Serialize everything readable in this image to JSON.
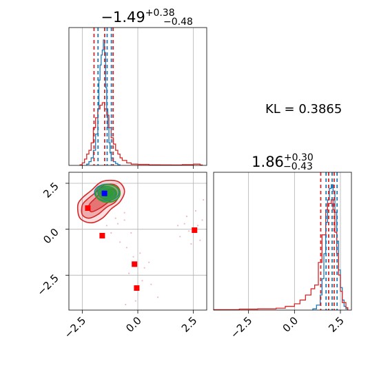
{
  "kl_label": "KL = 0.3865",
  "chart_data": [
    {
      "type": "histogram",
      "panel": "top-left",
      "title": {
        "main": "−1.49",
        "sup": "+0.38",
        "sub": "−0.48"
      },
      "xlim": [
        -3.1,
        3.1
      ],
      "grid": true,
      "vlines_red": [
        -1.97,
        -1.49,
        -1.11
      ],
      "vlines_blue": [
        -1.79,
        -1.38,
        -1.19
      ],
      "series": [
        {
          "color": "#1f77b4",
          "x": [
            -2.3,
            -2.2,
            -2.1,
            -2.0,
            -1.9,
            -1.8,
            -1.75,
            -1.7,
            -1.65,
            -1.6,
            -1.55,
            -1.5,
            -1.45,
            -1.4,
            -1.35,
            -1.3,
            -1.25,
            -1.2,
            -1.1,
            -1.0,
            -0.9
          ],
          "y": [
            0.01,
            0.03,
            0.06,
            0.12,
            0.25,
            0.45,
            0.68,
            0.8,
            0.88,
            0.92,
            1.0,
            0.9,
            0.62,
            0.45,
            0.3,
            0.18,
            0.1,
            0.06,
            0.03,
            0.015,
            0.005
          ]
        },
        {
          "color": "#d62728",
          "x": [
            -2.6,
            -2.5,
            -2.4,
            -2.3,
            -2.2,
            -2.1,
            -2.0,
            -1.9,
            -1.8,
            -1.7,
            -1.6,
            -1.5,
            -1.4,
            -1.3,
            -1.2,
            -1.1,
            -1.0,
            -0.9,
            -0.8,
            -0.7,
            -0.5,
            -0.3,
            0.0,
            0.5,
            1.0,
            1.5,
            2.0,
            2.5,
            2.8
          ],
          "y": [
            0.005,
            0.02,
            0.05,
            0.09,
            0.12,
            0.18,
            0.3,
            0.38,
            0.45,
            0.48,
            0.5,
            0.45,
            0.4,
            0.3,
            0.22,
            0.17,
            0.12,
            0.09,
            0.06,
            0.04,
            0.02,
            0.01,
            0.008,
            0.005,
            0.004,
            0.003,
            0.006,
            0.01,
            0.003
          ]
        }
      ]
    },
    {
      "type": "scatter",
      "panel": "bottom-left",
      "xlim": [
        -3.1,
        3.1
      ],
      "ylim": [
        -4.4,
        3.1
      ],
      "xticks": [
        "−2.5",
        "0.0",
        "2.5"
      ],
      "xtick_values": [
        -2.5,
        0.0,
        2.5
      ],
      "yticks": [
        "2.5",
        "0.0",
        "−2.5"
      ],
      "ytick_values": [
        2.5,
        0.0,
        -2.5
      ],
      "grid": true,
      "red_squares": [
        [
          -2.25,
          1.15
        ],
        [
          -1.6,
          -0.35
        ],
        [
          -0.15,
          -1.9
        ],
        [
          -0.05,
          -3.2
        ],
        [
          2.55,
          -0.05
        ]
      ],
      "blue_square": [
        -1.5,
        1.95
      ],
      "blue_contours": [
        {
          "cx": -1.4,
          "cy": 2.0,
          "rx": 0.55,
          "ry": 0.45
        },
        {
          "cx": -1.4,
          "cy": 2.0,
          "rx": 0.4,
          "ry": 0.33
        },
        {
          "cx": -1.4,
          "cy": 2.0,
          "rx": 0.25,
          "ry": 0.2
        }
      ],
      "green_contours": [
        {
          "cx": -1.35,
          "cy": 1.95,
          "rx": 0.55,
          "ry": 0.48
        },
        {
          "cx": -1.35,
          "cy": 1.95,
          "rx": 0.4,
          "ry": 0.35
        },
        {
          "cx": -1.35,
          "cy": 1.95,
          "rx": 0.24,
          "ry": 0.2
        }
      ],
      "red_contours": [
        [
          [
            -2.7,
            1.3
          ],
          [
            -2.5,
            1.7
          ],
          [
            -2.1,
            2.1
          ],
          [
            -1.6,
            2.6
          ],
          [
            -0.9,
            2.6
          ],
          [
            -0.6,
            2.1
          ],
          [
            -0.8,
            1.5
          ],
          [
            -1.2,
            1.1
          ],
          [
            -1.6,
            0.6
          ],
          [
            -2.1,
            0.35
          ],
          [
            -2.6,
            0.6
          ]
        ],
        [
          [
            -2.5,
            1.3
          ],
          [
            -2.3,
            1.6
          ],
          [
            -1.9,
            2.0
          ],
          [
            -1.5,
            2.4
          ],
          [
            -1.0,
            2.4
          ],
          [
            -0.8,
            2.0
          ],
          [
            -1.0,
            1.5
          ],
          [
            -1.4,
            1.2
          ],
          [
            -1.8,
            0.8
          ],
          [
            -2.2,
            0.6
          ],
          [
            -2.5,
            0.8
          ]
        ],
        [
          [
            -2.2,
            1.3
          ],
          [
            -1.9,
            1.7
          ],
          [
            -1.5,
            2.15
          ],
          [
            -1.1,
            2.15
          ],
          [
            -1.0,
            1.8
          ],
          [
            -1.3,
            1.5
          ],
          [
            -1.7,
            1.15
          ],
          [
            -2.1,
            0.95
          ]
        ]
      ],
      "faint_points": [
        [
          -1.0,
          0.6
        ],
        [
          -0.9,
          0.3
        ],
        [
          -0.6,
          0.5
        ],
        [
          -0.3,
          -0.2
        ],
        [
          -0.5,
          -1.0
        ],
        [
          -0.2,
          -1.5
        ],
        [
          0.1,
          -1.3
        ],
        [
          0.3,
          -2.1
        ],
        [
          0.2,
          -2.8
        ],
        [
          0.6,
          -3.0
        ],
        [
          -0.1,
          -3.9
        ],
        [
          -0.55,
          -4.1
        ],
        [
          1.8,
          0.2
        ],
        [
          2.1,
          0.3
        ],
        [
          2.3,
          -0.1
        ],
        [
          2.7,
          0.2
        ],
        [
          2.9,
          0.5
        ],
        [
          2.6,
          1.0
        ],
        [
          2.8,
          -0.6
        ],
        [
          2.4,
          -0.8
        ],
        [
          1.9,
          -0.4
        ],
        [
          -1.2,
          -0.2
        ],
        [
          -0.8,
          -0.7
        ],
        [
          0.5,
          -1.8
        ],
        [
          -0.4,
          -2.4
        ],
        [
          -0.6,
          0.9
        ],
        [
          2.2,
          0.7
        ],
        [
          0.9,
          -3.7
        ],
        [
          -1.4,
          0.2
        ],
        [
          2.95,
          1.6
        ]
      ]
    },
    {
      "type": "histogram",
      "panel": "bottom-right",
      "title": {
        "main": "1.86",
        "sup": "+0.30",
        "sub": "−0.43"
      },
      "xlim": [
        -4.4,
        3.1
      ],
      "xticks": [
        "−2.5",
        "0.0",
        "2.5"
      ],
      "xtick_values": [
        -2.5,
        0.0,
        2.5
      ],
      "grid": true,
      "vlines_red": [
        1.43,
        1.86,
        2.16
      ],
      "vlines_blue": [
        1.72,
        2.05,
        2.32
      ],
      "series": [
        {
          "color": "#1f77b4",
          "x": [
            1.0,
            1.2,
            1.4,
            1.5,
            1.6,
            1.7,
            1.8,
            1.9,
            2.0,
            2.1,
            2.2,
            2.3,
            2.4,
            2.5,
            2.6,
            2.7,
            2.8
          ],
          "y": [
            0.01,
            0.04,
            0.12,
            0.25,
            0.45,
            0.7,
            0.88,
            0.97,
            1.0,
            0.95,
            0.78,
            0.55,
            0.32,
            0.18,
            0.08,
            0.03,
            0.01
          ]
        },
        {
          "color": "#d62728",
          "x": [
            -4.4,
            -3.0,
            -2.0,
            -1.0,
            -0.5,
            0.0,
            0.3,
            0.6,
            0.9,
            1.1,
            1.3,
            1.5,
            1.7,
            1.8,
            1.9,
            2.0,
            2.1,
            2.2,
            2.3,
            2.4,
            2.5,
            2.6,
            2.8
          ],
          "y": [
            0.003,
            0.008,
            0.01,
            0.015,
            0.03,
            0.05,
            0.08,
            0.12,
            0.17,
            0.2,
            0.38,
            0.6,
            0.8,
            0.85,
            0.85,
            0.88,
            0.8,
            0.62,
            0.45,
            0.28,
            0.15,
            0.06,
            0.02
          ]
        }
      ]
    }
  ]
}
